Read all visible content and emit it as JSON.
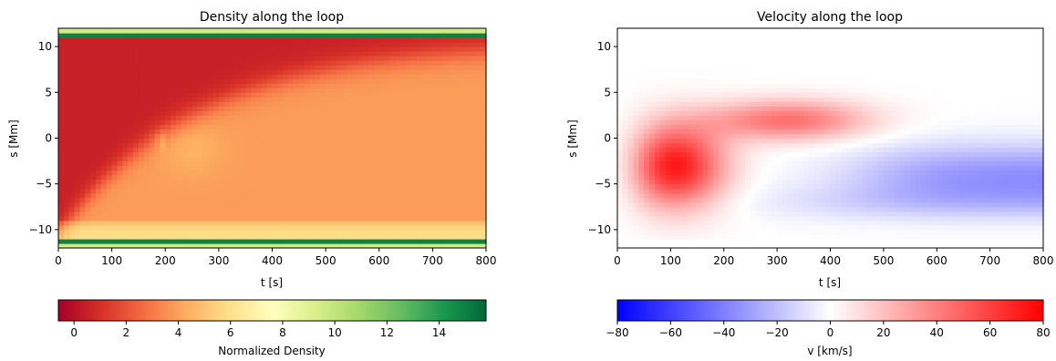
{
  "chart_data": [
    {
      "type": "heatmap",
      "title": "Density along the loop",
      "xlabel": "t [s]",
      "ylabel": "s [Mm]",
      "xlim": [
        0,
        800
      ],
      "ylim": [
        -12,
        12
      ],
      "xticks": [
        0,
        100,
        200,
        300,
        400,
        500,
        600,
        700,
        800
      ],
      "yticks": [
        10,
        5,
        0,
        -5,
        -10
      ],
      "colormap": "RdYlGn",
      "colorbar": {
        "label": "Normalized Density",
        "range": [
          -0.6,
          15.8
        ],
        "ticks": [
          0,
          2,
          4,
          6,
          8,
          10,
          12,
          14
        ],
        "stops": [
          "#a50026",
          "#d73027",
          "#f46d43",
          "#fdae61",
          "#fee08b",
          "#ffffbf",
          "#d9ef8b",
          "#a6d96a",
          "#66bd63",
          "#1a9850",
          "#006837"
        ]
      },
      "features": {
        "footpoint_bands_s": [
          -11.2,
          11.2
        ],
        "footpoint_density": 15,
        "front_arrival_t_at_s10": 800,
        "background_density": 0.5,
        "filled_density": 4
      }
    },
    {
      "type": "heatmap",
      "title": "Velocity along the loop",
      "xlabel": "t [s]",
      "ylabel": "s [Mm]",
      "xlim": [
        0,
        800
      ],
      "ylim": [
        -12,
        12
      ],
      "xticks": [
        0,
        100,
        200,
        300,
        400,
        500,
        600,
        700,
        800
      ],
      "yticks": [
        10,
        5,
        0,
        -5,
        -10
      ],
      "colormap": "bwr",
      "colorbar": {
        "label": "v [km/s]",
        "range": [
          -80,
          80
        ],
        "ticks": [
          -80,
          -60,
          -40,
          -20,
          0,
          20,
          40,
          60,
          80
        ],
        "stops": [
          "#0000ff",
          "#ffffff",
          "#ff0000"
        ]
      },
      "features": {
        "peak_upflow_kms": 75,
        "peak_upflow_t": 100,
        "peak_downflow_kms": -35,
        "peak_downflow_t": 680
      }
    }
  ]
}
